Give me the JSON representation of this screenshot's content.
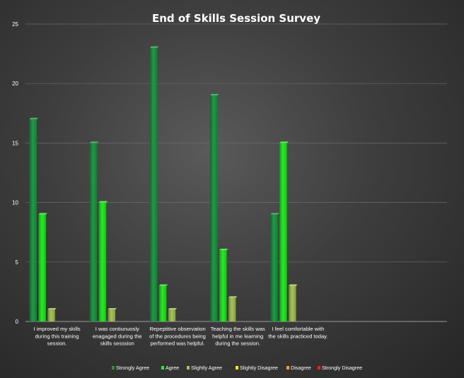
{
  "chart_data": {
    "type": "bar",
    "title": "End of Skills Session Survey",
    "xlabel": "",
    "ylabel": "",
    "ylim": [
      0,
      25
    ],
    "yticks": [
      0,
      5,
      10,
      15,
      20,
      25
    ],
    "grid": true,
    "legend_position": "bottom",
    "categories": [
      [
        "I improved my skills",
        "during this training",
        "session."
      ],
      [
        "I was contiunuosly",
        "enagaged during the",
        "skills sesssion"
      ],
      [
        "Repeptitive observation",
        "of the procedures being",
        "performed was helpful."
      ],
      [
        "Teaching the skills was",
        "helpful in me learning",
        "during the session."
      ],
      [
        "I feel comfortable with",
        "the skills practiced today."
      ]
    ],
    "series": [
      {
        "name": "Strongly Agree",
        "color": "#1e9a45",
        "values": [
          17,
          15,
          23,
          19,
          9
        ]
      },
      {
        "name": "Agree",
        "color": "#22ee22",
        "values": [
          9,
          10,
          3,
          6,
          15
        ]
      },
      {
        "name": "Slightly Agree",
        "color": "#a8c458",
        "values": [
          1,
          1,
          1,
          2,
          3
        ]
      },
      {
        "name": "Slightly Disagree",
        "color": "#f4f000",
        "values": [
          0,
          0,
          0,
          0,
          0
        ]
      },
      {
        "name": "Disagree",
        "color": "#f0a030",
        "values": [
          0,
          0,
          0,
          0,
          0
        ]
      },
      {
        "name": "Strongly Disagree",
        "color": "#ee2020",
        "values": [
          0,
          0,
          0,
          0,
          0
        ]
      }
    ]
  }
}
